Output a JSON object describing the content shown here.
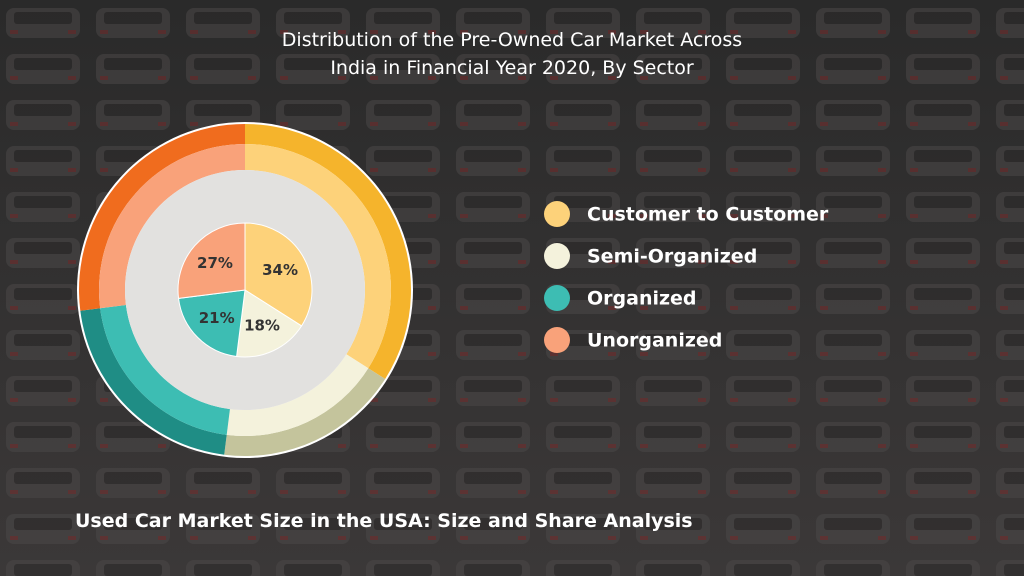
{
  "chart_data": {
    "type": "pie",
    "title": "Distribution of the Pre-Owned Car Market Across India in Financial Year 2020, By Sector",
    "categories": [
      "Customer to Customer",
      "Semi-Organized",
      "Organized",
      "Unorganized"
    ],
    "values": [
      34,
      18,
      21,
      27
    ],
    "value_labels": [
      "34%",
      "18%",
      "21%",
      "27%"
    ],
    "colors": [
      "#fdd27a",
      "#f4f2dc",
      "#3dbdb3",
      "#f9a27a"
    ],
    "outer_colors": [
      "#f5b42c",
      "#c4c49c",
      "#1f8d85",
      "#f06c1e"
    ],
    "legend": "right"
  },
  "caption": "Used Car Market Size in the USA: Size and Share Analysis"
}
